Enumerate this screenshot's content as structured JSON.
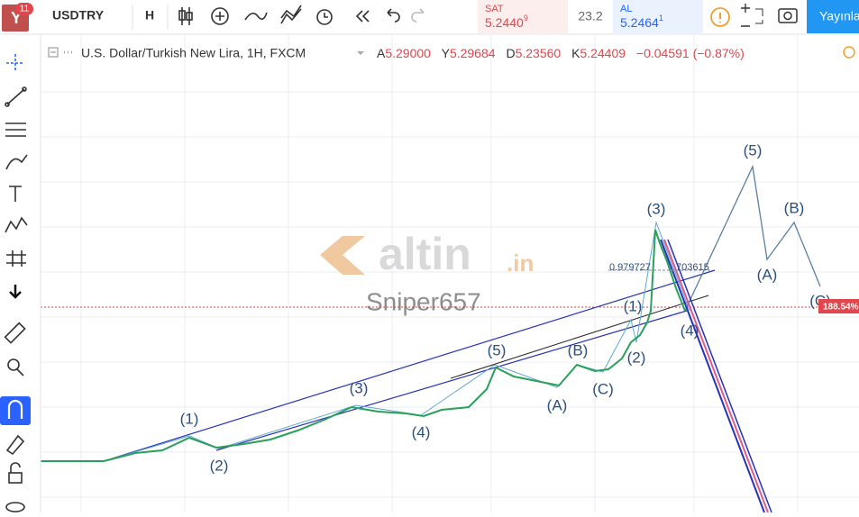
{
  "toolbar": {
    "badge": "11",
    "symbol": "USDTRY",
    "interval": "H",
    "sell_label": "SAT",
    "sell_price": "5.2440",
    "sell_sup": "9",
    "spread": "23.2",
    "buy_label": "AL",
    "buy_price": "5.2464",
    "buy_sup": "1",
    "publish": "Yayınla"
  },
  "header": {
    "title": "U.S. Dollar/Turkish New Lira, 1H, FXCM",
    "open_label": "A",
    "open": "5.29000",
    "high_label": "Y",
    "high": "5.29684",
    "low_label": "D",
    "low": "5.23560",
    "close_label": "K",
    "close": "5.24409",
    "change": "−0.04591 (−0.87%)"
  },
  "watermark": {
    "brand": "altin",
    "tld": ".in",
    "author": "Sniper657"
  },
  "annotations": {
    "fib_left": "0.979727",
    "fib_right": "703615",
    "price_tag": "188.54%"
  },
  "waves": [
    "(1)",
    "(2)",
    "(3)",
    "(4)",
    "(5)",
    "(A)",
    "(B)",
    "(C)",
    "(1)",
    "(2)",
    "(3)",
    "(4)",
    "(5)",
    "(A)",
    "(B)",
    "(C)"
  ]
}
